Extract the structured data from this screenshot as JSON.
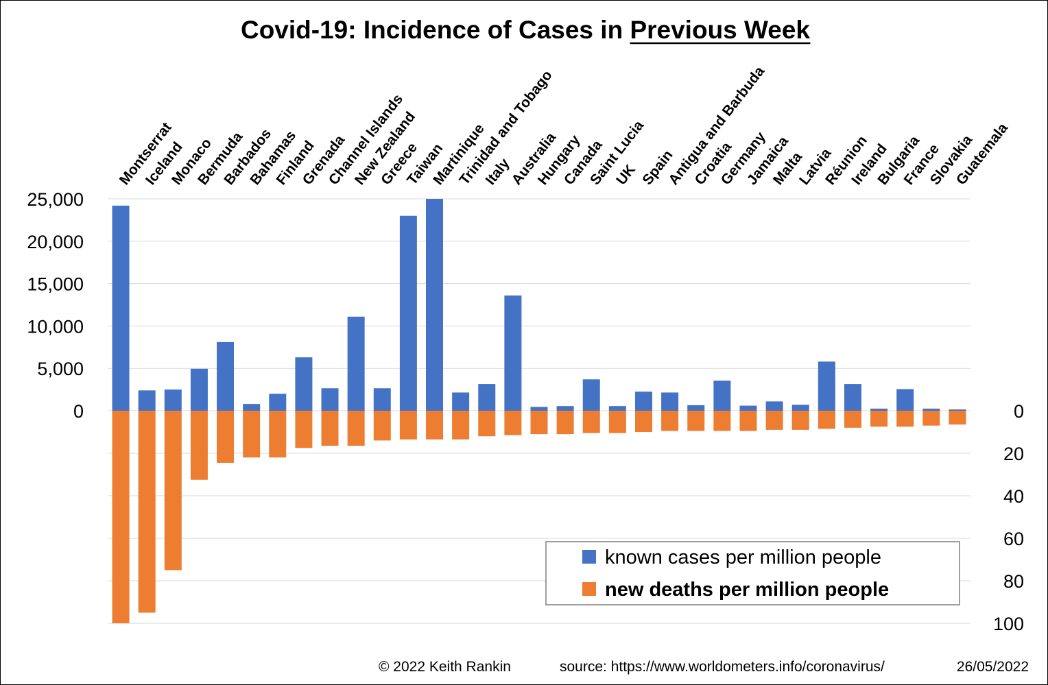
{
  "chart_data": {
    "type": "bar",
    "title_main": "Covid-19: Incidence of Cases in ",
    "title_underlined": "Previous Week",
    "categories": [
      "Montserrat",
      "Iceland",
      "Monaco",
      "Bermuda",
      "Barbados",
      "Bahamas",
      "Finland",
      "Grenada",
      "Channel Islands",
      "New Zealand",
      "Greece",
      "Taiwan",
      "Martinique",
      "Trinidad and Tobago",
      "Italy",
      "Australia",
      "Hungary",
      "Canada",
      "Saint Lucia",
      "UK",
      "Spain",
      "Antigua and Barbuda",
      "Croatia",
      "Germany",
      "Jamaica",
      "Malta",
      "Latvia",
      "Réunion",
      "Ireland",
      "Bulgaria",
      "France",
      "Slovakia",
      "Guatemala"
    ],
    "series": [
      {
        "name": "known cases per million people",
        "color": "#4472C4",
        "axis": "left",
        "values": [
          24200,
          2400,
          2500,
          4950,
          8100,
          800,
          2000,
          6300,
          2650,
          11100,
          2650,
          23000,
          25000,
          2150,
          3150,
          13600,
          450,
          550,
          3700,
          550,
          2250,
          2150,
          650,
          3550,
          600,
          1100,
          700,
          5800,
          3150,
          250,
          2550,
          250,
          150
        ]
      },
      {
        "name": "new deaths per million people",
        "color": "#ED7D31",
        "axis": "right",
        "values": [
          100,
          95,
          75,
          32.5,
          24.5,
          22,
          22,
          17.5,
          16.5,
          16.5,
          14,
          13.5,
          13.5,
          13.5,
          12,
          11.5,
          11,
          11,
          10.5,
          10.5,
          10,
          9.5,
          9.5,
          9.5,
          9.5,
          9,
          9,
          8.5,
          8,
          7.5,
          7.5,
          7,
          6.5
        ]
      }
    ],
    "left_axis": {
      "ylim": [
        0,
        25000
      ],
      "ticks": [
        "25,000",
        "20,000",
        "15,000",
        "10,000",
        "5,000",
        "0"
      ],
      "tick_values": [
        25000,
        20000,
        15000,
        10000,
        5000,
        0
      ]
    },
    "right_axis": {
      "ylim": [
        0,
        100
      ],
      "inverted": true,
      "ticks": [
        "0",
        "20",
        "40",
        "60",
        "80",
        "100"
      ],
      "tick_values": [
        0,
        20,
        40,
        60,
        80,
        100
      ]
    },
    "grid": true,
    "legend_position": "bottom-right"
  },
  "footer": {
    "copyright": "© 2022  Keith Rankin",
    "source": "source: https://www.worldometers.info/coronavirus/",
    "date": "26/05/2022"
  }
}
